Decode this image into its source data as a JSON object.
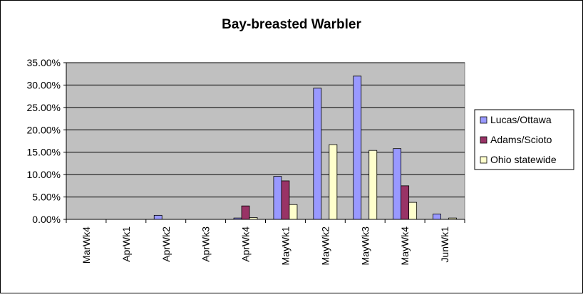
{
  "chart_data": {
    "type": "bar",
    "title": "Bay-breasted Warbler",
    "xlabel": "",
    "ylabel": "",
    "categories": [
      "MarWk4",
      "AprWk1",
      "AprWk2",
      "AprWk3",
      "AprWk4",
      "MayWk1",
      "MayWk2",
      "MayWk3",
      "MayWk4",
      "JunWk1"
    ],
    "y_ticks": [
      "0.00%",
      "5.00%",
      "10.00%",
      "15.00%",
      "20.00%",
      "25.00%",
      "30.00%",
      "35.00%"
    ],
    "ylim": [
      0,
      35
    ],
    "grid": true,
    "legend_position": "right",
    "series": [
      {
        "name": "Lucas/Ottawa",
        "color": "#9999ff",
        "values": [
          0,
          0,
          0.9,
          0,
          0.3,
          9.6,
          29.3,
          32.0,
          15.8,
          1.2
        ]
      },
      {
        "name": "Adams/Scioto",
        "color": "#993366",
        "values": [
          0,
          0,
          0,
          0,
          3.0,
          8.6,
          0,
          0,
          7.5,
          0
        ]
      },
      {
        "name": "Ohio statewide",
        "color": "#ffffcc",
        "values": [
          0,
          0,
          0,
          0,
          0.4,
          3.3,
          16.7,
          15.4,
          3.8,
          0.3
        ]
      }
    ],
    "plot_background": "#c0c0c0"
  }
}
